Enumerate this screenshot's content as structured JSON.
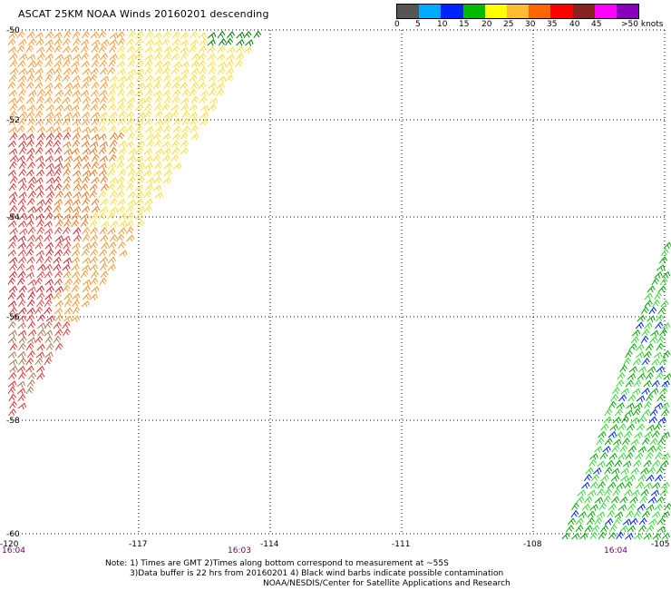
{
  "title": "ASCAT 25KM NOAA Winds 20160201 descending",
  "legend": {
    "colors": [
      "#555555",
      "#00aaff",
      "#0022ff",
      "#00bb00",
      "#ffff00",
      "#ffbb33",
      "#ff6600",
      "#ff0000",
      "#882222",
      "#ff00ff",
      "#8800bb"
    ],
    "ticks": [
      "0",
      "5",
      "10",
      "15",
      "20",
      "25",
      "30",
      "35",
      "40",
      "45",
      ">50 knots"
    ]
  },
  "map": {
    "lat_labels": [
      "-50",
      "-52",
      "-54",
      "-56",
      "-58",
      "-60"
    ],
    "lon_labels": [
      "-120",
      "-117",
      "-114",
      "-111",
      "-108",
      "-105"
    ],
    "time_labels": [
      "16:04",
      "16:03",
      "16:04"
    ]
  },
  "notes": {
    "line1": "Note: 1) Times are GMT 2)Times along bottom correspond to measurement at ~55S",
    "line2": "3)Data buffer is 22 hrs from 20160201 4) Black wind barbs indicate possible contamination",
    "line3": "NOAA/NESDIS/Center for Satellite Applications and Research"
  }
}
